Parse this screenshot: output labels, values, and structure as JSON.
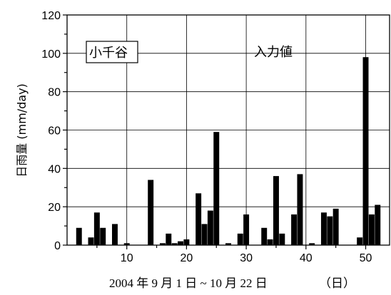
{
  "chart_data": {
    "type": "bar",
    "ylabel": "日雨量 (mm/day)",
    "xlabel": "2004 年 9 月 1 日 ~ 10 月 22 日",
    "xlabel_unit": "（日）",
    "xlim": [
      0,
      54
    ],
    "ylim": [
      0,
      120
    ],
    "x_ticks": [
      10,
      20,
      30,
      40,
      50
    ],
    "y_ticks": [
      0,
      20,
      40,
      60,
      80,
      100,
      120
    ],
    "x_minor_ticks": [
      5,
      15,
      25,
      35,
      45
    ],
    "y_minor_ticks": [
      10,
      30,
      50,
      70,
      90,
      110
    ],
    "grid": true,
    "annotations": {
      "station": "小千谷",
      "note": "入力値"
    },
    "x": [
      2,
      4,
      5,
      6,
      8,
      10,
      14,
      16,
      17,
      18,
      19,
      20,
      22,
      23,
      24,
      25,
      27,
      29,
      30,
      33,
      34,
      35,
      36,
      38,
      39,
      41,
      43,
      44,
      45,
      49,
      50,
      51,
      52
    ],
    "values": [
      9,
      4,
      17,
      9,
      11,
      1,
      34,
      1,
      6,
      1,
      2,
      3,
      27,
      11,
      18,
      59,
      1,
      6,
      16,
      9,
      3,
      36,
      6,
      16,
      37,
      1,
      17,
      15,
      19,
      4,
      98,
      16,
      21
    ]
  }
}
